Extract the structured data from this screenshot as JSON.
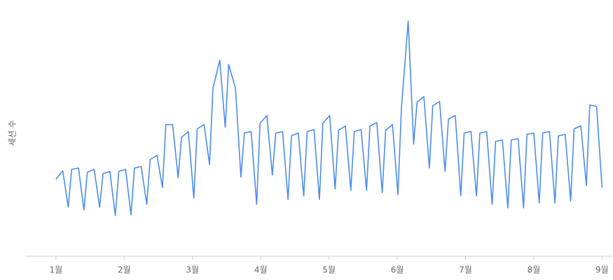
{
  "chart_data": {
    "type": "line",
    "y_label": "세션 수",
    "xlim": [
      0.55,
      9.15
    ],
    "ylim": [
      0,
      340
    ],
    "xticks": [
      {
        "value": 1,
        "label": "1월"
      },
      {
        "value": 2,
        "label": "2월"
      },
      {
        "value": 3,
        "label": "3월"
      },
      {
        "value": 4,
        "label": "4월"
      },
      {
        "value": 5,
        "label": "5월"
      },
      {
        "value": 6,
        "label": "6월"
      },
      {
        "value": 7,
        "label": "7월"
      },
      {
        "value": 8,
        "label": "8월"
      },
      {
        "value": 9,
        "label": "9월"
      }
    ],
    "grid": false,
    "x": [
      1.0,
      1.1,
      1.18,
      1.23,
      1.33,
      1.41,
      1.46,
      1.56,
      1.64,
      1.69,
      1.79,
      1.87,
      1.92,
      2.02,
      2.1,
      2.15,
      2.25,
      2.33,
      2.38,
      2.48,
      2.56,
      2.61,
      2.71,
      2.79,
      2.84,
      2.94,
      3.02,
      3.07,
      3.17,
      3.25,
      3.3,
      3.4,
      3.48,
      3.53,
      3.63,
      3.71,
      3.76,
      3.86,
      3.94,
      3.99,
      4.09,
      4.17,
      4.22,
      4.32,
      4.4,
      4.45,
      4.55,
      4.63,
      4.68,
      4.78,
      4.86,
      4.91,
      5.01,
      5.09,
      5.14,
      5.24,
      5.32,
      5.37,
      5.47,
      5.55,
      5.6,
      5.7,
      5.78,
      5.83,
      5.93,
      6.01,
      6.06,
      6.16,
      6.24,
      6.29,
      6.39,
      6.47,
      6.52,
      6.62,
      6.7,
      6.75,
      6.85,
      6.93,
      6.98,
      7.08,
      7.16,
      7.21,
      7.31,
      7.39,
      7.44,
      7.54,
      7.62,
      7.67,
      7.77,
      7.85,
      7.9,
      8.0,
      8.08,
      8.13,
      8.23,
      8.31,
      8.36,
      8.46,
      8.54,
      8.59,
      8.69,
      8.77,
      8.82,
      8.92,
      9.0
    ],
    "series": [
      {
        "color": "#4a8cf0",
        "values": [
          110,
          122,
          70,
          124,
          126,
          66,
          120,
          124,
          70,
          118,
          121,
          58,
          121,
          124,
          59,
          126,
          128,
          74,
          138,
          144,
          98,
          188,
          188,
          112,
          170,
          178,
          83,
          182,
          188,
          131,
          240,
          280,
          184,
          274,
          240,
          113,
          176,
          178,
          74,
          190,
          201,
          116,
          176,
          178,
          81,
          172,
          176,
          86,
          178,
          181,
          81,
          190,
          201,
          96,
          180,
          186,
          94,
          178,
          181,
          94,
          186,
          191,
          91,
          180,
          188,
          88,
          210,
          336,
          160,
          220,
          228,
          126,
          215,
          221,
          121,
          196,
          201,
          86,
          176,
          178,
          86,
          176,
          178,
          74,
          164,
          166,
          69,
          166,
          168,
          69,
          174,
          176,
          76,
          176,
          178,
          76,
          172,
          174,
          79,
          182,
          186,
          101,
          216,
          214,
          98
        ]
      }
    ]
  }
}
